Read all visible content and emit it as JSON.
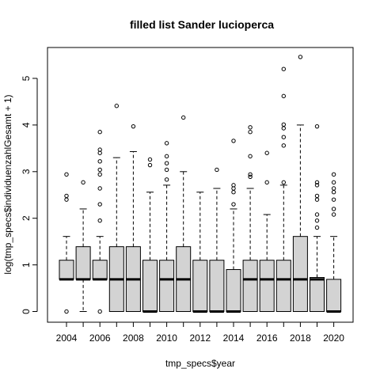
{
  "chart_data": {
    "type": "boxplot",
    "title": "filled list Sander lucioperca",
    "xlabel": "tmp_specs$year",
    "ylabel": "log(tmp_specs$individuenzahlGesamt + 1)",
    "ylim": [
      0,
      5.5
    ],
    "y_ticks": [
      0,
      1,
      2,
      3,
      4,
      5
    ],
    "x_tick_labels": [
      "2004",
      "2006",
      "2008",
      "2010",
      "2012",
      "2014",
      "2016",
      "2018",
      "2020"
    ],
    "box_fill": "#d3d3d3",
    "grid": false,
    "boxes": [
      {
        "year": 2004,
        "min": 0.69,
        "q1": 0.69,
        "median": 0.69,
        "q3": 1.1,
        "max": 1.61,
        "outliers": [
          0,
          2.4,
          2.48,
          2.94
        ]
      },
      {
        "year": 2005,
        "min": 0,
        "q1": 0.69,
        "median": 0.69,
        "q3": 1.39,
        "max": 2.2,
        "outliers": [
          2.77
        ]
      },
      {
        "year": 2006,
        "min": 0.69,
        "q1": 0.69,
        "median": 0.69,
        "q3": 1.1,
        "max": 1.61,
        "outliers": [
          0,
          1.95,
          2.3,
          2.64,
          2.94,
          3.04,
          3.22,
          3.4,
          3.47,
          3.85
        ]
      },
      {
        "year": 2007,
        "min": 0,
        "q1": 0,
        "median": 0.69,
        "q3": 1.39,
        "max": 3.3,
        "outliers": [
          4.41
        ]
      },
      {
        "year": 2008,
        "min": 0,
        "q1": 0,
        "median": 0.69,
        "q3": 1.39,
        "max": 3.43,
        "outliers": [
          3.97
        ]
      },
      {
        "year": 2009,
        "min": 0,
        "q1": 0,
        "median": 0,
        "q3": 1.1,
        "max": 2.56,
        "outliers": [
          3.14,
          3.26
        ]
      },
      {
        "year": 2010,
        "min": 0,
        "q1": 0,
        "median": 0.69,
        "q3": 1.1,
        "max": 2.71,
        "outliers": [
          2.83,
          3.04,
          3.18,
          3.33,
          3.61
        ]
      },
      {
        "year": 2011,
        "min": 0,
        "q1": 0,
        "median": 0.69,
        "q3": 1.39,
        "max": 3.0,
        "outliers": [
          4.16
        ]
      },
      {
        "year": 2012,
        "min": 0,
        "q1": 0,
        "median": 0,
        "q3": 1.1,
        "max": 2.56,
        "outliers": []
      },
      {
        "year": 2013,
        "min": 0,
        "q1": 0,
        "median": 0,
        "q3": 1.1,
        "max": 2.64,
        "outliers": [
          3.04
        ]
      },
      {
        "year": 2014,
        "min": 0,
        "q1": 0,
        "median": 0,
        "q3": 0.9,
        "max": 2.2,
        "outliers": [
          2.3,
          2.56,
          2.64,
          2.71,
          3.66
        ]
      },
      {
        "year": 2015,
        "min": 0,
        "q1": 0,
        "median": 0.69,
        "q3": 1.1,
        "max": 2.64,
        "outliers": [
          2.89,
          2.94,
          3.33,
          3.85,
          3.95
        ]
      },
      {
        "year": 2016,
        "min": 0,
        "q1": 0,
        "median": 0.69,
        "q3": 1.1,
        "max": 2.08,
        "outliers": [
          2.77,
          3.4
        ]
      },
      {
        "year": 2017,
        "min": 0,
        "q1": 0,
        "median": 0.69,
        "q3": 1.1,
        "max": 2.71,
        "outliers": [
          2.77,
          3.56,
          3.74,
          3.93,
          4.01,
          4.62,
          5.2
        ]
      },
      {
        "year": 2018,
        "min": 0,
        "q1": 0,
        "median": 0.69,
        "q3": 1.61,
        "max": 4.0,
        "outliers": [
          5.46
        ]
      },
      {
        "year": 2019,
        "min": 0,
        "q1": 0,
        "median": 0.69,
        "q3": 0.73,
        "max": 1.61,
        "outliers": [
          1.8,
          1.95,
          2.08,
          2.4,
          2.48,
          2.71,
          2.77,
          3.97
        ]
      },
      {
        "year": 2020,
        "min": 0,
        "q1": 0,
        "median": 0,
        "q3": 0.69,
        "max": 1.61,
        "outliers": [
          2.08,
          2.2,
          2.4,
          2.56,
          2.64,
          2.77,
          2.94
        ]
      }
    ]
  }
}
